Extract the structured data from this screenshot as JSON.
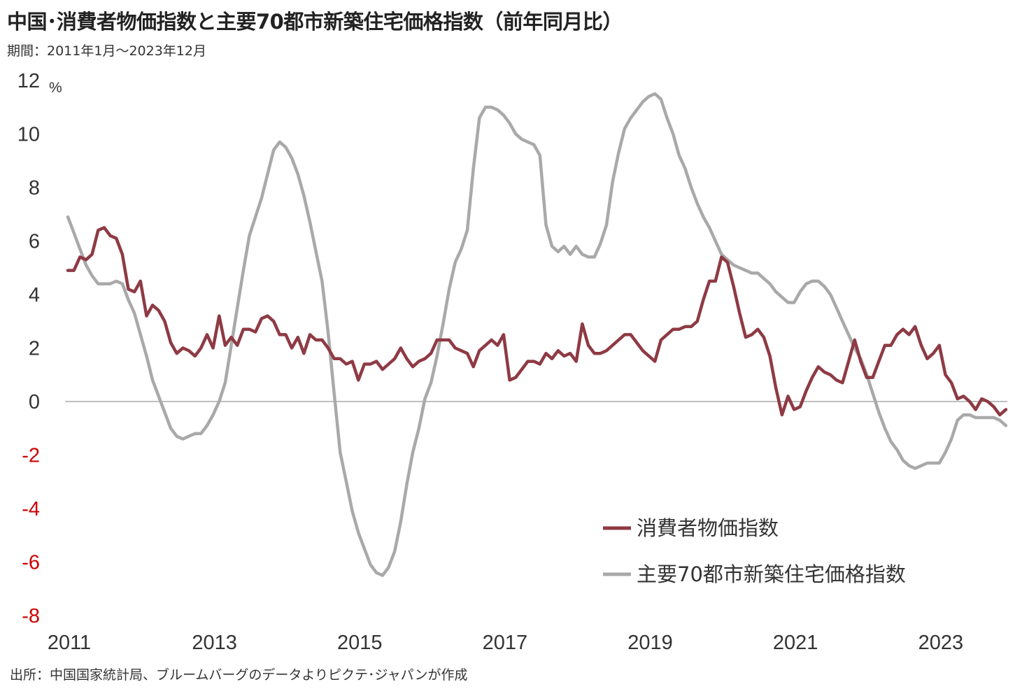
{
  "title": "中国･消費者物価指数と主要70都市新築住宅価格指数（前年同月比）",
  "period": "期間：2011年1月～2023年12月",
  "source": "出所：中国国家統計局、ブルームバーグのデータよりピクテ･ジャパンが作成",
  "colors": {
    "cpi": "#8e3a44",
    "housing": "#a9a9a9",
    "negative_tick": "#cc0000",
    "zero_line": "#999999"
  },
  "chart_data": {
    "type": "line",
    "y_unit": "%",
    "ylim": [
      -8,
      12
    ],
    "y_ticks": [
      12,
      10,
      8,
      6,
      4,
      2,
      0,
      -2,
      -4,
      -6,
      -8
    ],
    "x_ticks": [
      "2011",
      "2013",
      "2015",
      "2017",
      "2019",
      "2021",
      "2023"
    ],
    "x_range": [
      "2011-01",
      "2023-12"
    ],
    "grid": false,
    "legend_position": "bottom-right",
    "series": [
      {
        "name": "消費者物価指数",
        "color": "#8e3a44",
        "values": [
          4.9,
          4.9,
          5.4,
          5.3,
          5.5,
          6.4,
          6.5,
          6.2,
          6.1,
          5.5,
          4.2,
          4.1,
          4.5,
          3.2,
          3.6,
          3.4,
          3.0,
          2.2,
          1.8,
          2.0,
          1.9,
          1.7,
          2.0,
          2.5,
          2.0,
          3.2,
          2.1,
          2.4,
          2.1,
          2.7,
          2.7,
          2.6,
          3.1,
          3.2,
          3.0,
          2.5,
          2.5,
          2.0,
          2.4,
          1.8,
          2.5,
          2.3,
          2.3,
          2.0,
          1.6,
          1.6,
          1.4,
          1.5,
          0.8,
          1.4,
          1.4,
          1.5,
          1.2,
          1.4,
          1.6,
          2.0,
          1.6,
          1.3,
          1.5,
          1.6,
          1.8,
          2.3,
          2.3,
          2.3,
          2.0,
          1.9,
          1.8,
          1.3,
          1.9,
          2.1,
          2.3,
          2.1,
          2.5,
          0.8,
          0.9,
          1.2,
          1.5,
          1.5,
          1.4,
          1.8,
          1.6,
          1.9,
          1.7,
          1.8,
          1.5,
          2.9,
          2.1,
          1.8,
          1.8,
          1.9,
          2.1,
          2.3,
          2.5,
          2.5,
          2.2,
          1.9,
          1.7,
          1.5,
          2.3,
          2.5,
          2.7,
          2.7,
          2.8,
          2.8,
          3.0,
          3.8,
          4.5,
          4.5,
          5.4,
          5.2,
          4.3,
          3.3,
          2.4,
          2.5,
          2.7,
          2.4,
          1.7,
          0.5,
          -0.5,
          0.2,
          -0.3,
          -0.2,
          0.4,
          0.9,
          1.3,
          1.1,
          1.0,
          0.8,
          0.7,
          1.5,
          2.3,
          1.5,
          0.9,
          0.9,
          1.5,
          2.1,
          2.1,
          2.5,
          2.7,
          2.5,
          2.8,
          2.1,
          1.6,
          1.8,
          2.1,
          1.0,
          0.7,
          0.1,
          0.2,
          0.0,
          -0.3,
          0.1,
          0.0,
          -0.2,
          -0.5,
          -0.3
        ]
      },
      {
        "name": "主要70都市新築住宅価格指数",
        "color": "#a9a9a9",
        "values": [
          6.9,
          6.3,
          5.7,
          5.1,
          4.7,
          4.4,
          4.4,
          4.4,
          4.5,
          4.4,
          3.8,
          3.3,
          2.5,
          1.7,
          0.8,
          0.2,
          -0.4,
          -1.0,
          -1.3,
          -1.4,
          -1.3,
          -1.2,
          -1.2,
          -0.9,
          -0.5,
          0.0,
          0.7,
          2.1,
          3.5,
          4.9,
          6.2,
          6.9,
          7.6,
          8.5,
          9.4,
          9.7,
          9.5,
          9.1,
          8.5,
          7.7,
          6.7,
          5.6,
          4.5,
          2.6,
          0.3,
          -1.9,
          -3.0,
          -4.1,
          -4.9,
          -5.5,
          -6.1,
          -6.4,
          -6.5,
          -6.2,
          -5.6,
          -4.5,
          -3.1,
          -1.9,
          -1.0,
          0.1,
          0.7,
          1.7,
          2.9,
          4.2,
          5.2,
          5.7,
          6.4,
          8.7,
          10.6,
          11.0,
          11.0,
          10.9,
          10.7,
          10.4,
          10.0,
          9.8,
          9.7,
          9.6,
          9.2,
          6.6,
          5.8,
          5.6,
          5.8,
          5.5,
          5.8,
          5.5,
          5.4,
          5.4,
          5.9,
          6.6,
          8.2,
          9.3,
          10.2,
          10.6,
          10.9,
          11.2,
          11.4,
          11.5,
          11.3,
          10.6,
          10.0,
          9.2,
          8.7,
          8.0,
          7.4,
          6.9,
          6.5,
          6.0,
          5.5,
          5.3,
          5.1,
          5.0,
          4.9,
          4.8,
          4.8,
          4.6,
          4.4,
          4.1,
          3.9,
          3.7,
          3.7,
          4.1,
          4.4,
          4.5,
          4.5,
          4.3,
          4.0,
          3.5,
          3.0,
          2.5,
          2.0,
          1.6,
          1.0,
          0.3,
          -0.4,
          -1.0,
          -1.5,
          -1.8,
          -2.2,
          -2.4,
          -2.5,
          -2.4,
          -2.3,
          -2.3,
          -2.3,
          -1.9,
          -1.4,
          -0.7,
          -0.5,
          -0.5,
          -0.6,
          -0.6,
          -0.6,
          -0.6,
          -0.7,
          -0.9
        ]
      }
    ]
  }
}
